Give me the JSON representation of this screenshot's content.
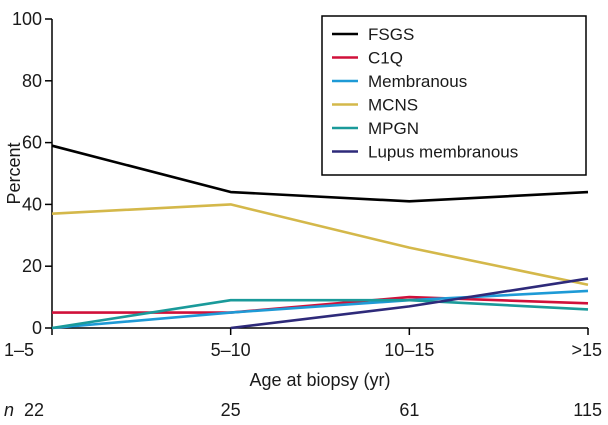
{
  "chart_data": {
    "type": "line",
    "x_categories": [
      "1–5",
      "5–10",
      "10–15",
      ">15"
    ],
    "xlabel": "Age at biopsy (yr)",
    "ylabel": "Percent",
    "ylim": [
      0,
      100
    ],
    "y_ticks": [
      0,
      20,
      40,
      60,
      80,
      100
    ],
    "grid": false,
    "legend_position": "top-right",
    "series": [
      {
        "name": "FSGS",
        "color": "#000000",
        "values": [
          59,
          44,
          41,
          44
        ]
      },
      {
        "name": "C1Q",
        "color": "#d0103a",
        "values": [
          5,
          5,
          10,
          8
        ]
      },
      {
        "name": "Membranous",
        "color": "#1e9ad6",
        "values": [
          0,
          5,
          9,
          12
        ]
      },
      {
        "name": "MCNS",
        "color": "#d4b84a",
        "values": [
          37,
          40,
          26,
          14
        ]
      },
      {
        "name": "MPGN",
        "color": "#1a9a9a",
        "values": [
          0,
          9,
          9,
          6
        ]
      },
      {
        "name": "Lupus membranous",
        "color": "#2e2a7a",
        "values": [
          null,
          0,
          7,
          16
        ]
      }
    ],
    "n_row": {
      "label": "n",
      "values": [
        "22",
        "25",
        "61",
        "115"
      ]
    }
  }
}
